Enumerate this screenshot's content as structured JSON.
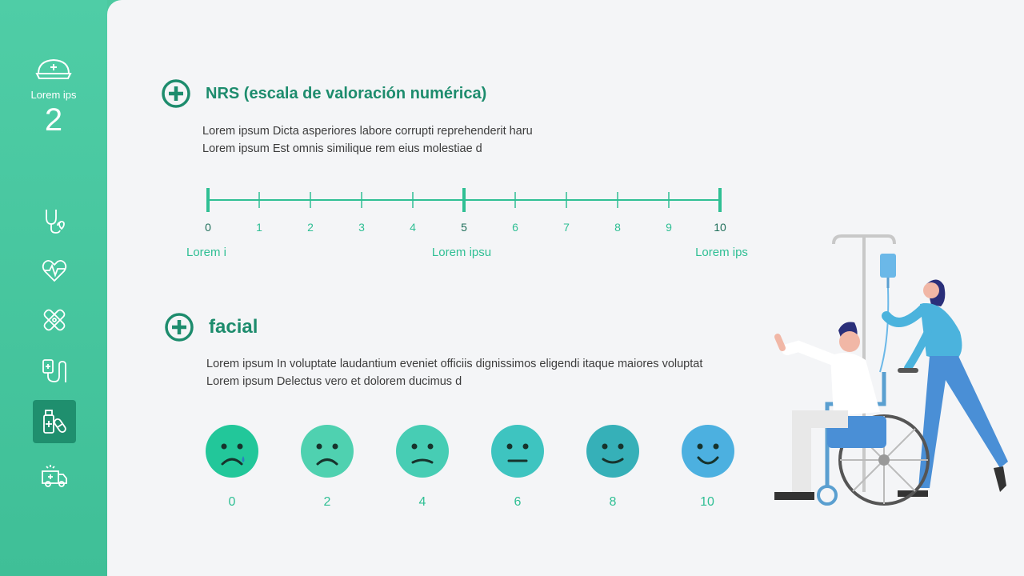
{
  "sidebar": {
    "brand_label": "Lorem ips",
    "brand_number": "2",
    "icons": [
      "stethoscope-heart-icon",
      "heartbeat-icon",
      "bandages-icon",
      "iv-drip-icon",
      "medicine-icon",
      "ambulance-icon"
    ],
    "active_index": 4
  },
  "nrs": {
    "title": "NRS (escala de valoración numérica)",
    "lines": [
      "Lorem ipsum Dicta asperiores labore corrupti reprehenderit haru",
      "Lorem ipsum Est omnis similique rem eius molestiae d"
    ],
    "ticks": [
      "0",
      "1",
      "2",
      "3",
      "4",
      "5",
      "6",
      "7",
      "8",
      "9",
      "10"
    ],
    "captions": [
      "Lorem i",
      "Lorem ipsu",
      "Lorem ips"
    ]
  },
  "facial": {
    "title": "facial",
    "lines": [
      "Lorem ipsum In voluptate laudantium eveniet officiis dignissimos eligendi itaque maiores voluptat",
      "Lorem ipsum Delectus vero et dolorem ducimus d"
    ],
    "scores": [
      "0",
      "2",
      "4",
      "6",
      "8",
      "10"
    ]
  },
  "colors": {
    "accent": "#1d8c6d",
    "scale_line": "#2fbf94",
    "faces": [
      "#22c79a",
      "#4fd1b0",
      "#47cdb4",
      "#3ec4c0",
      "#36b0b8",
      "#4cb0e0"
    ]
  }
}
